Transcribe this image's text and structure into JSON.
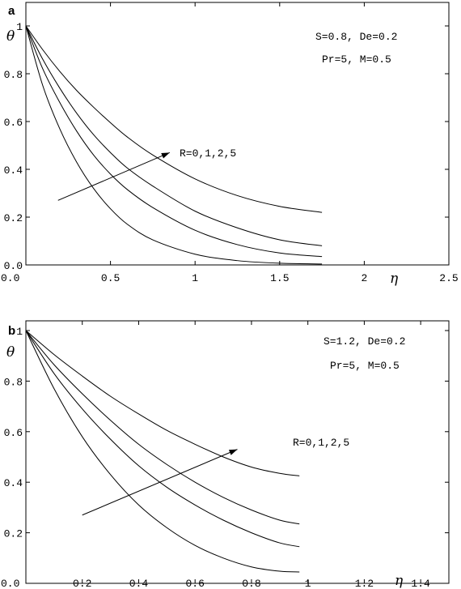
{
  "chart_data": [
    {
      "type": "line",
      "panel_label": "a",
      "xlabel": "η",
      "ylabel": "θ",
      "xlim": [
        0,
        2.5
      ],
      "ylim": [
        0,
        1.05
      ],
      "xticks": [
        "0.0",
        "0.5",
        "1",
        "1.5",
        "2",
        "2.5"
      ],
      "xtick_values": [
        0,
        0.5,
        1,
        1.5,
        2,
        2.5
      ],
      "yticks": [
        "0.0",
        "0.2",
        "0.4",
        "0.6",
        "0.8",
        "1"
      ],
      "ytick_values": [
        0,
        0.2,
        0.4,
        0.6,
        0.8,
        1
      ],
      "annotations": [
        "S=0.8, De=0.2",
        "Pr=5, M=0.5"
      ],
      "arrow_label": "R=0,1,2,5",
      "arrow": {
        "from": [
          0.19,
          0.27
        ],
        "to": [
          0.85,
          0.47
        ]
      },
      "series": [
        {
          "x": [
            0,
            0.1,
            0.2,
            0.3,
            0.4,
            0.5,
            0.6,
            0.75,
            1.0,
            1.25,
            1.5,
            1.75
          ],
          "y": [
            1,
            0.75,
            0.57,
            0.43,
            0.32,
            0.235,
            0.17,
            0.105,
            0.045,
            0.018,
            0.007,
            0.004
          ]
        },
        {
          "x": [
            0,
            0.1,
            0.2,
            0.3,
            0.4,
            0.5,
            0.6,
            0.75,
            1.0,
            1.25,
            1.5,
            1.75
          ],
          "y": [
            1,
            0.82,
            0.68,
            0.56,
            0.46,
            0.38,
            0.315,
            0.24,
            0.145,
            0.085,
            0.05,
            0.035
          ]
        },
        {
          "x": [
            0,
            0.1,
            0.2,
            0.3,
            0.4,
            0.5,
            0.6,
            0.75,
            1.0,
            1.25,
            1.5,
            1.75
          ],
          "y": [
            1,
            0.86,
            0.74,
            0.635,
            0.545,
            0.47,
            0.405,
            0.33,
            0.225,
            0.155,
            0.105,
            0.08
          ]
        },
        {
          "x": [
            0,
            0.1,
            0.2,
            0.3,
            0.4,
            0.5,
            0.6,
            0.75,
            1.0,
            1.25,
            1.5,
            1.75
          ],
          "y": [
            1,
            0.9,
            0.81,
            0.73,
            0.66,
            0.595,
            0.535,
            0.46,
            0.36,
            0.29,
            0.245,
            0.22
          ]
        }
      ]
    },
    {
      "type": "line",
      "panel_label": "b",
      "xlabel": "η",
      "ylabel": "θ",
      "xlim": [
        0,
        1.5
      ],
      "ylim": [
        0,
        1.05
      ],
      "xticks": [
        "0.0",
        "0.2",
        "0.4",
        "0.6",
        "0.8",
        "1",
        "1.2",
        "1.4"
      ],
      "xtick_values": [
        0,
        0.2,
        0.4,
        0.6,
        0.8,
        1.0,
        1.2,
        1.4
      ],
      "yticks": [
        "0.2",
        "0.4",
        "0.6",
        "0.8",
        "1"
      ],
      "ytick_values": [
        0.2,
        0.4,
        0.6,
        0.8,
        1
      ],
      "annotations": [
        "S=1.2, De=0.2",
        "Pr=5, M=0.5"
      ],
      "arrow_label": "R=0,1,2,5",
      "arrow": {
        "from": [
          0.2,
          0.27
        ],
        "to": [
          0.75,
          0.53
        ]
      },
      "series": [
        {
          "x": [
            0,
            0.1,
            0.2,
            0.3,
            0.4,
            0.5,
            0.6,
            0.7,
            0.8,
            0.9,
            0.97
          ],
          "y": [
            1,
            0.77,
            0.58,
            0.43,
            0.31,
            0.22,
            0.15,
            0.1,
            0.065,
            0.048,
            0.045
          ]
        },
        {
          "x": [
            0,
            0.1,
            0.2,
            0.3,
            0.4,
            0.5,
            0.6,
            0.7,
            0.8,
            0.9,
            0.97
          ],
          "y": [
            1,
            0.83,
            0.69,
            0.57,
            0.465,
            0.38,
            0.31,
            0.25,
            0.2,
            0.16,
            0.145
          ]
        },
        {
          "x": [
            0,
            0.1,
            0.2,
            0.3,
            0.4,
            0.5,
            0.6,
            0.7,
            0.8,
            0.9,
            0.97
          ],
          "y": [
            1,
            0.865,
            0.75,
            0.645,
            0.55,
            0.47,
            0.4,
            0.34,
            0.29,
            0.25,
            0.235
          ]
        },
        {
          "x": [
            0,
            0.1,
            0.2,
            0.3,
            0.4,
            0.5,
            0.6,
            0.7,
            0.8,
            0.9,
            0.97
          ],
          "y": [
            1,
            0.905,
            0.82,
            0.74,
            0.67,
            0.605,
            0.55,
            0.5,
            0.46,
            0.435,
            0.425
          ]
        }
      ]
    }
  ]
}
